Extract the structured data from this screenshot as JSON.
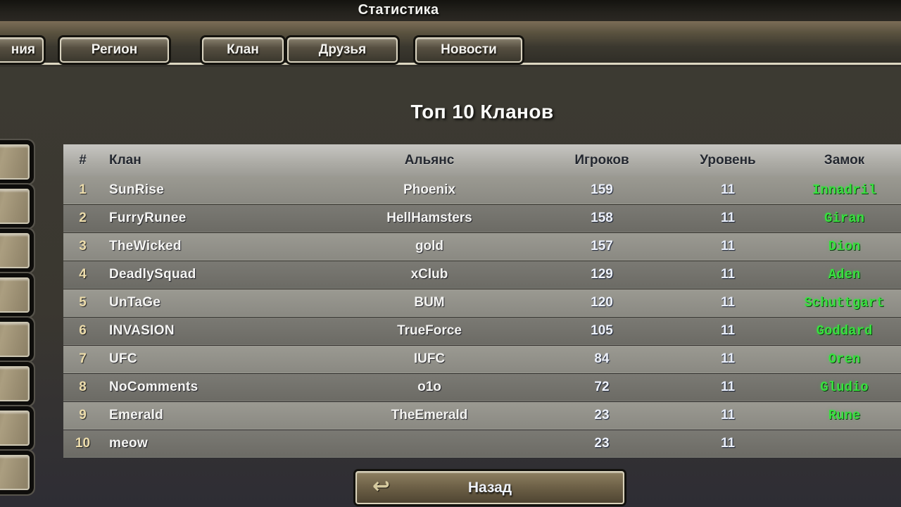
{
  "window": {
    "title": "Статистика"
  },
  "tabs": [
    {
      "label": "ния",
      "partial": true
    },
    {
      "label": "Регион"
    },
    {
      "label": "Клан"
    },
    {
      "label": "Друзья"
    },
    {
      "label": "Новости"
    }
  ],
  "page": {
    "title": "Топ 10 Кланов"
  },
  "table": {
    "columns": [
      "#",
      "Клан",
      "Альянс",
      "Игроков",
      "Уровень",
      "Замок"
    ],
    "rows": [
      {
        "rank": "1",
        "clan": "SunRise",
        "alliance": "Phoenix",
        "players": "159",
        "level": "11",
        "castle": "Innadril"
      },
      {
        "rank": "2",
        "clan": "FurryRunee",
        "alliance": "HellHamsters",
        "players": "158",
        "level": "11",
        "castle": "Giran"
      },
      {
        "rank": "3",
        "clan": "TheWicked",
        "alliance": "gold",
        "players": "157",
        "level": "11",
        "castle": "Dion"
      },
      {
        "rank": "4",
        "clan": "DeadlySquad",
        "alliance": "xClub",
        "players": "129",
        "level": "11",
        "castle": "Aden"
      },
      {
        "rank": "5",
        "clan": "UnTaGe",
        "alliance": "BUM",
        "players": "120",
        "level": "11",
        "castle": "Schuttgart"
      },
      {
        "rank": "6",
        "clan": "INVASION",
        "alliance": "TrueForce",
        "players": "105",
        "level": "11",
        "castle": "Goddard"
      },
      {
        "rank": "7",
        "clan": "UFC",
        "alliance": "IUFC",
        "players": "84",
        "level": "11",
        "castle": "Oren"
      },
      {
        "rank": "8",
        "clan": "NoComments",
        "alliance": "o1o",
        "players": "72",
        "level": "11",
        "castle": "Gludio"
      },
      {
        "rank": "9",
        "clan": "Emerald",
        "alliance": "TheEmerald",
        "players": "23",
        "level": "11",
        "castle": "Rune"
      },
      {
        "rank": "10",
        "clan": "meow",
        "alliance": "",
        "players": "23",
        "level": "11",
        "castle": ""
      }
    ]
  },
  "footer": {
    "back_label": "Назад",
    "back_icon": "↩"
  },
  "left_panel": {
    "stub_button_count": 8
  },
  "colors": {
    "castle_green": "#38e03e",
    "rank_yellow": "#ecdcab",
    "tab_border": "#d9d3bf",
    "header_text": "#242830"
  }
}
